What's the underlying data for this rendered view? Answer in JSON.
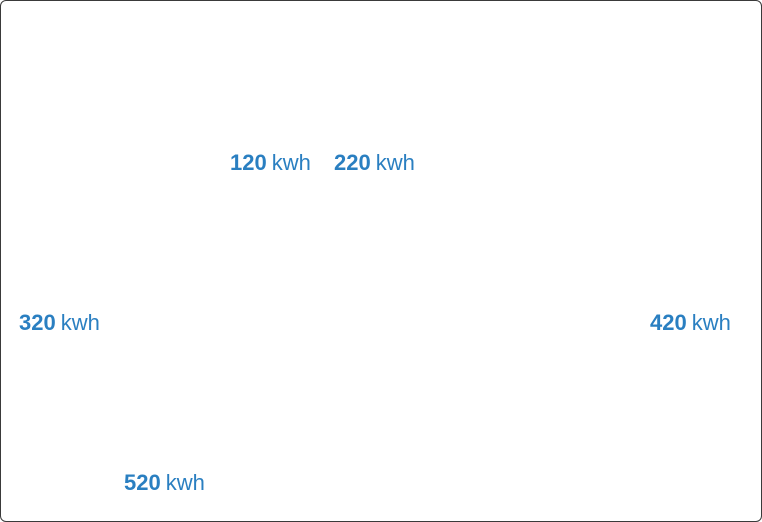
{
  "readings": [
    {
      "value": "120",
      "unit": "kwh"
    },
    {
      "value": "220",
      "unit": "kwh"
    },
    {
      "value": "320",
      "unit": "kwh"
    },
    {
      "value": "420",
      "unit": "kwh"
    },
    {
      "value": "520",
      "unit": "kwh"
    }
  ],
  "colors": {
    "accent": "#2a7fc1",
    "border": "#3a3a3a",
    "background": "#ffffff"
  }
}
